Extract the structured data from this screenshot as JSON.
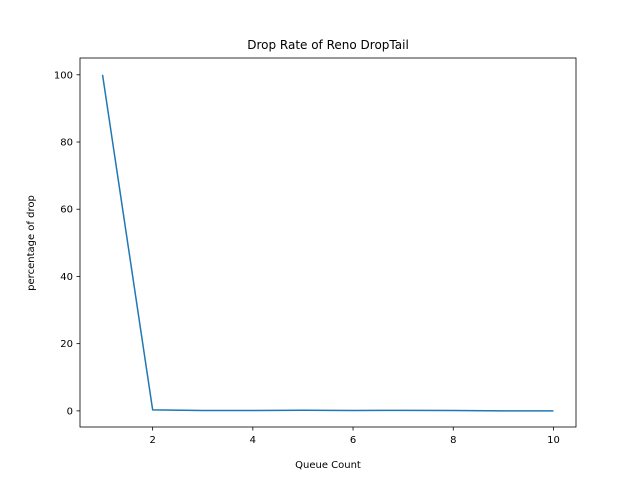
{
  "chart_data": {
    "type": "line",
    "title": "Drop Rate of Reno DropTail",
    "xlabel": "Queue Count",
    "ylabel": "percentage of drop",
    "xlim": [
      0.55,
      10.45
    ],
    "ylim": [
      -4.8,
      105
    ],
    "xticks": [
      2,
      4,
      6,
      8,
      10
    ],
    "yticks": [
      0,
      20,
      40,
      60,
      80,
      100
    ],
    "grid": false,
    "series": [
      {
        "color": "#1f77b4",
        "x": [
          1,
          2,
          3,
          4,
          5,
          6,
          7,
          8,
          9,
          10
        ],
        "y": [
          100,
          0.3,
          0.1,
          0.1,
          0.2,
          0.1,
          0.15,
          0.1,
          0.0,
          0.0
        ]
      }
    ]
  }
}
